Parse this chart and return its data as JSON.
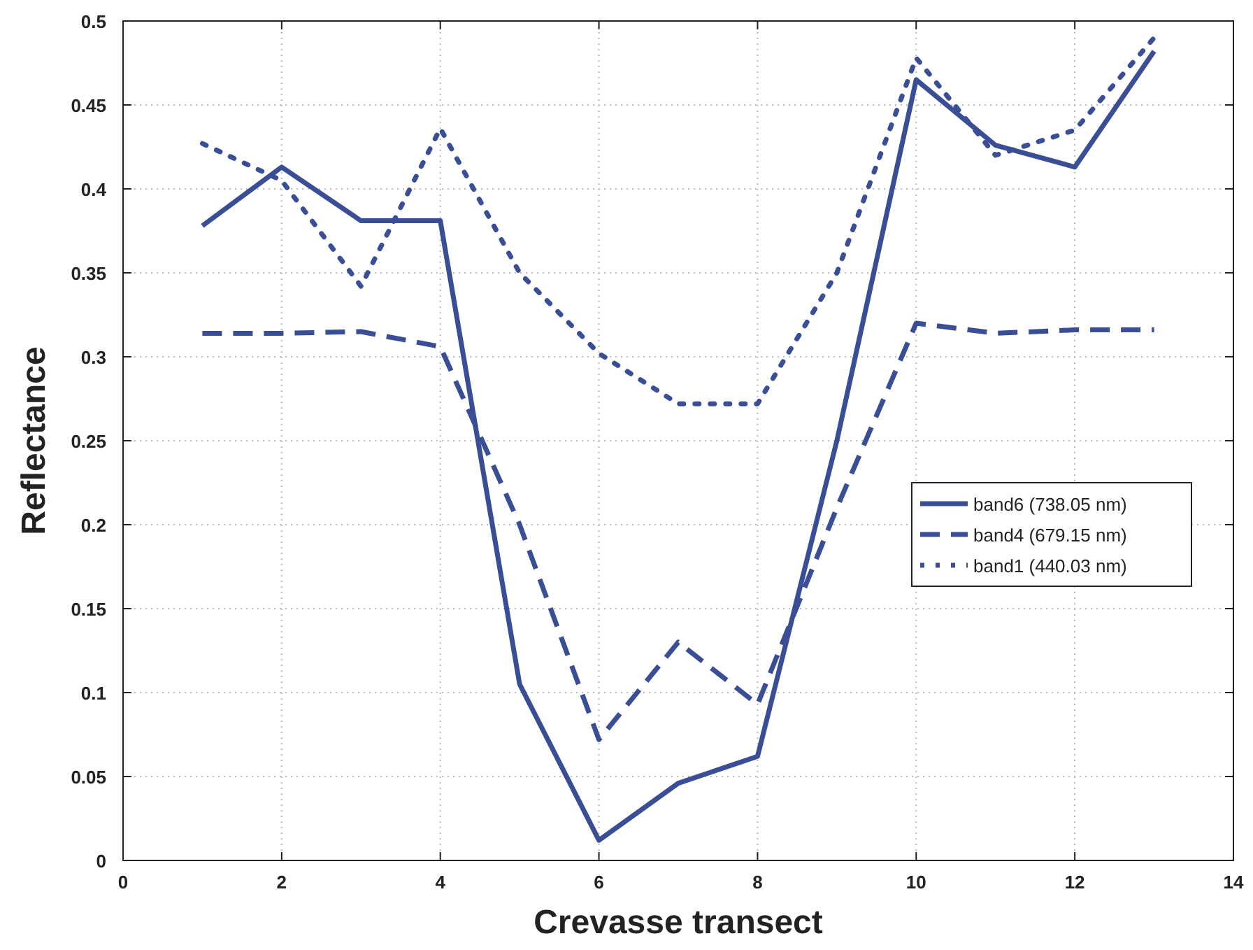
{
  "chart_data": {
    "type": "line",
    "xlabel": "Crevasse transect",
    "ylabel": "Reflectance",
    "x": [
      1,
      2,
      3,
      4,
      5,
      6,
      7,
      8,
      9,
      10,
      11,
      12,
      13
    ],
    "series": [
      {
        "name": "band6 (738.05 nm)",
        "color": "#3a4e96",
        "line_style": "solid",
        "values": [
          0.378,
          0.413,
          0.381,
          0.381,
          0.105,
          0.012,
          0.046,
          0.062,
          0.25,
          0.465,
          0.426,
          0.413,
          0.482
        ]
      },
      {
        "name": "band4 (679.15 nm)",
        "color": "#3a4e96",
        "line_style": "dashed",
        "values": [
          0.314,
          0.314,
          0.315,
          0.306,
          0.2,
          0.072,
          0.13,
          0.093,
          0.21,
          0.32,
          0.314,
          0.316,
          0.316
        ]
      },
      {
        "name": "band1 (440.03 nm)",
        "color": "#3a4e96",
        "line_style": "dotted",
        "values": [
          0.427,
          0.405,
          0.342,
          0.436,
          0.35,
          0.302,
          0.272,
          0.272,
          0.35,
          0.478,
          0.42,
          0.435,
          0.49
        ]
      }
    ],
    "xlim": [
      0,
      14
    ],
    "xticks": [
      0,
      2,
      4,
      6,
      8,
      10,
      12,
      14
    ],
    "ylim": [
      0,
      0.5
    ],
    "yticks": [
      0,
      0.05,
      0.1,
      0.15,
      0.2,
      0.25,
      0.3,
      0.35,
      0.4,
      0.45,
      0.5
    ],
    "grid": true,
    "legend": "right",
    "marker": "none"
  }
}
